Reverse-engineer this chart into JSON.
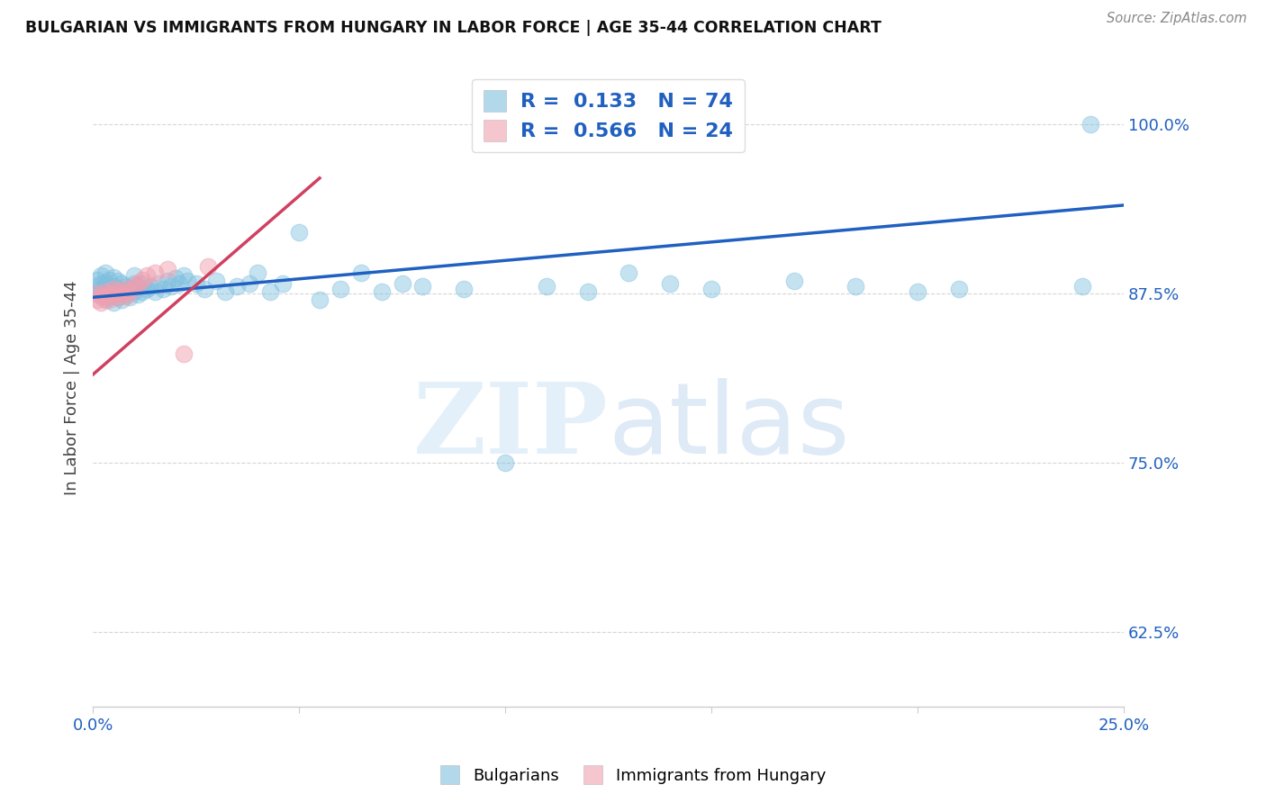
{
  "title": "BULGARIAN VS IMMIGRANTS FROM HUNGARY IN LABOR FORCE | AGE 35-44 CORRELATION CHART",
  "source": "Source: ZipAtlas.com",
  "ylabel": "In Labor Force | Age 35-44",
  "xlim": [
    0.0,
    0.25
  ],
  "ylim": [
    0.57,
    1.04
  ],
  "ytick_positions": [
    0.625,
    0.75,
    0.875,
    1.0
  ],
  "ytick_labels": [
    "62.5%",
    "75.0%",
    "87.5%",
    "100.0%"
  ],
  "bg_color": "#ffffff",
  "grid_color": "#cccccc",
  "blue_color": "#7fbfdf",
  "pink_color": "#f0a0b0",
  "blue_line_color": "#2060c0",
  "pink_line_color": "#d04060",
  "R_blue": 0.133,
  "N_blue": 74,
  "R_pink": 0.566,
  "N_pink": 24,
  "legend_text_color": "#2060c0",
  "blue_line_x0": 0.0,
  "blue_line_x1": 0.25,
  "blue_line_y0": 0.872,
  "blue_line_y1": 0.94,
  "pink_line_x0": 0.0,
  "pink_line_x1": 0.055,
  "pink_line_y0": 0.815,
  "pink_line_y1": 0.96,
  "blue_x": [
    0.001,
    0.001,
    0.001,
    0.002,
    0.002,
    0.002,
    0.003,
    0.003,
    0.003,
    0.003,
    0.004,
    0.004,
    0.004,
    0.005,
    0.005,
    0.005,
    0.005,
    0.006,
    0.006,
    0.006,
    0.007,
    0.007,
    0.007,
    0.008,
    0.008,
    0.009,
    0.009,
    0.01,
    0.01,
    0.01,
    0.011,
    0.011,
    0.012,
    0.012,
    0.013,
    0.014,
    0.015,
    0.016,
    0.017,
    0.018,
    0.019,
    0.02,
    0.021,
    0.022,
    0.023,
    0.025,
    0.027,
    0.03,
    0.032,
    0.035,
    0.038,
    0.04,
    0.043,
    0.046,
    0.05,
    0.055,
    0.06,
    0.065,
    0.07,
    0.075,
    0.08,
    0.09,
    0.1,
    0.11,
    0.12,
    0.13,
    0.14,
    0.15,
    0.17,
    0.185,
    0.2,
    0.21,
    0.24,
    0.242
  ],
  "blue_y": [
    0.875,
    0.88,
    0.885,
    0.878,
    0.882,
    0.888,
    0.87,
    0.876,
    0.883,
    0.89,
    0.872,
    0.878,
    0.885,
    0.868,
    0.874,
    0.88,
    0.887,
    0.872,
    0.878,
    0.884,
    0.87,
    0.876,
    0.882,
    0.874,
    0.88,
    0.872,
    0.878,
    0.876,
    0.882,
    0.888,
    0.874,
    0.88,
    0.876,
    0.882,
    0.878,
    0.88,
    0.876,
    0.882,
    0.878,
    0.884,
    0.88,
    0.886,
    0.882,
    0.888,
    0.884,
    0.882,
    0.878,
    0.884,
    0.876,
    0.88,
    0.882,
    0.89,
    0.876,
    0.882,
    0.92,
    0.87,
    0.878,
    0.89,
    0.876,
    0.882,
    0.88,
    0.878,
    0.75,
    0.88,
    0.876,
    0.89,
    0.882,
    0.878,
    0.884,
    0.88,
    0.876,
    0.878,
    0.88,
    1.0
  ],
  "pink_x": [
    0.001,
    0.001,
    0.002,
    0.002,
    0.003,
    0.003,
    0.004,
    0.004,
    0.005,
    0.005,
    0.006,
    0.006,
    0.007,
    0.008,
    0.008,
    0.009,
    0.01,
    0.011,
    0.012,
    0.013,
    0.015,
    0.018,
    0.022,
    0.028
  ],
  "pink_y": [
    0.875,
    0.87,
    0.873,
    0.868,
    0.876,
    0.872,
    0.875,
    0.87,
    0.878,
    0.874,
    0.877,
    0.872,
    0.875,
    0.878,
    0.873,
    0.876,
    0.88,
    0.882,
    0.885,
    0.888,
    0.89,
    0.893,
    0.83,
    0.895
  ]
}
